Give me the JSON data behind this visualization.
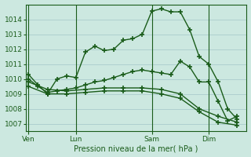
{
  "title": "Pression niveau de la mer( hPa )",
  "bg_color": "#cce8e0",
  "grid_color": "#aacccc",
  "line_color": "#1a5c1a",
  "ylim": [
    1006.5,
    1015.0
  ],
  "yticks": [
    1007,
    1008,
    1009,
    1010,
    1011,
    1012,
    1013,
    1014
  ],
  "xlim": [
    -0.3,
    23.0
  ],
  "xtick_labels": [
    "Ven",
    "Lun",
    "Sam",
    "Dim"
  ],
  "xtick_positions": [
    0,
    5,
    13,
    19
  ],
  "vline_positions": [
    0,
    5,
    13,
    19
  ],
  "series": [
    {
      "x": [
        0,
        1,
        2,
        3,
        4,
        5,
        6,
        7,
        8,
        9,
        10,
        11,
        12,
        13,
        14,
        15,
        16,
        17,
        18,
        19,
        20,
        21,
        22
      ],
      "y": [
        1010.3,
        1009.6,
        1009.0,
        1010.0,
        1010.2,
        1010.1,
        1011.8,
        1012.2,
        1011.9,
        1012.0,
        1012.6,
        1012.7,
        1013.0,
        1014.55,
        1014.7,
        1014.5,
        1014.5,
        1013.3,
        1011.5,
        1011.0,
        1009.8,
        1008.0,
        1007.3
      ]
    },
    {
      "x": [
        0,
        1,
        2,
        3,
        4,
        5,
        6,
        7,
        8,
        9,
        10,
        11,
        12,
        13,
        14,
        15,
        16,
        17,
        18,
        19,
        20,
        21,
        22
      ],
      "y": [
        1010.0,
        1009.5,
        1009.1,
        1009.2,
        1009.3,
        1009.4,
        1009.6,
        1009.8,
        1009.9,
        1010.1,
        1010.3,
        1010.5,
        1010.6,
        1010.5,
        1010.4,
        1010.3,
        1011.2,
        1010.8,
        1009.8,
        1009.8,
        1008.5,
        1007.2,
        1007.5
      ]
    },
    {
      "x": [
        0,
        2,
        4,
        6,
        8,
        10,
        12,
        14,
        16,
        18,
        20,
        22
      ],
      "y": [
        1009.8,
        1009.3,
        1009.2,
        1009.3,
        1009.4,
        1009.4,
        1009.4,
        1009.3,
        1009.0,
        1008.0,
        1007.5,
        1007.1
      ]
    },
    {
      "x": [
        0,
        2,
        4,
        6,
        8,
        10,
        12,
        14,
        16,
        18,
        20,
        22
      ],
      "y": [
        1009.5,
        1009.0,
        1009.0,
        1009.1,
        1009.2,
        1009.2,
        1009.2,
        1009.0,
        1008.7,
        1007.8,
        1007.1,
        1006.9
      ]
    }
  ]
}
